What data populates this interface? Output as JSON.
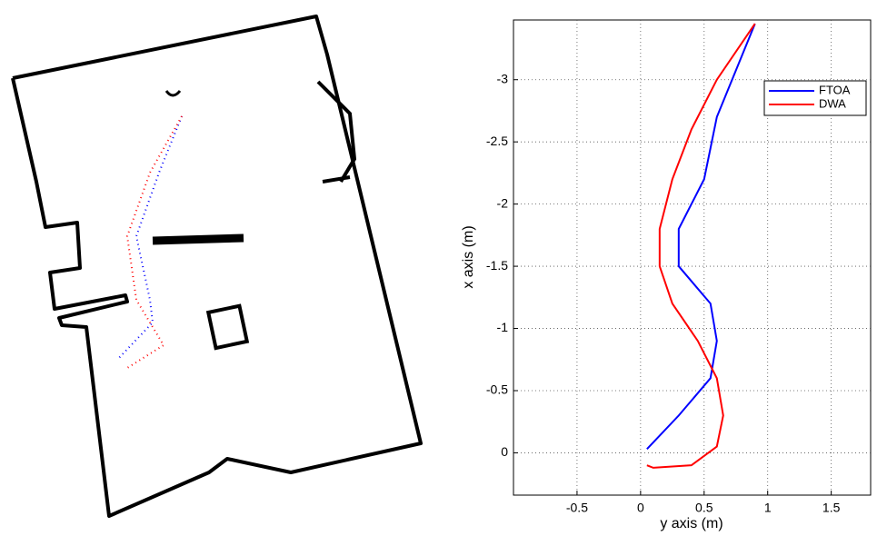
{
  "chart_data": {
    "type": "line",
    "xlabel": "y axis (m)",
    "ylabel": "x axis (m)",
    "xlim": [
      -1,
      1.81
    ],
    "ylim": [
      0.34,
      -3.48
    ],
    "xticks": [
      -0.5,
      0,
      0.5,
      1,
      1.5
    ],
    "yticks": [
      -3,
      -2.5,
      -2,
      -1.5,
      -1,
      -0.5,
      0
    ],
    "grid": true,
    "legend": "upper right",
    "series": [
      {
        "name": "FTOA",
        "color": "#0000ff",
        "x": [
          0.05,
          0.3,
          0.55,
          0.6,
          0.55,
          0.3,
          0.3,
          0.5,
          0.6,
          0.8,
          0.9
        ],
        "values": [
          -0.03,
          -0.3,
          -0.6,
          -0.9,
          -1.2,
          -1.5,
          -1.8,
          -2.2,
          -2.7,
          -3.2,
          -3.45
        ]
      },
      {
        "name": "DWA",
        "color": "#ff0000",
        "x": [
          0.9,
          0.6,
          0.4,
          0.25,
          0.15,
          0.15,
          0.25,
          0.45,
          0.6,
          0.65,
          0.6,
          0.4,
          0.1,
          0.05
        ],
        "values": [
          -3.45,
          -3.0,
          -2.6,
          -2.2,
          -1.8,
          -1.5,
          -1.2,
          -0.9,
          -0.6,
          -0.3,
          -0.05,
          0.1,
          0.12,
          0.1
        ]
      }
    ]
  }
}
